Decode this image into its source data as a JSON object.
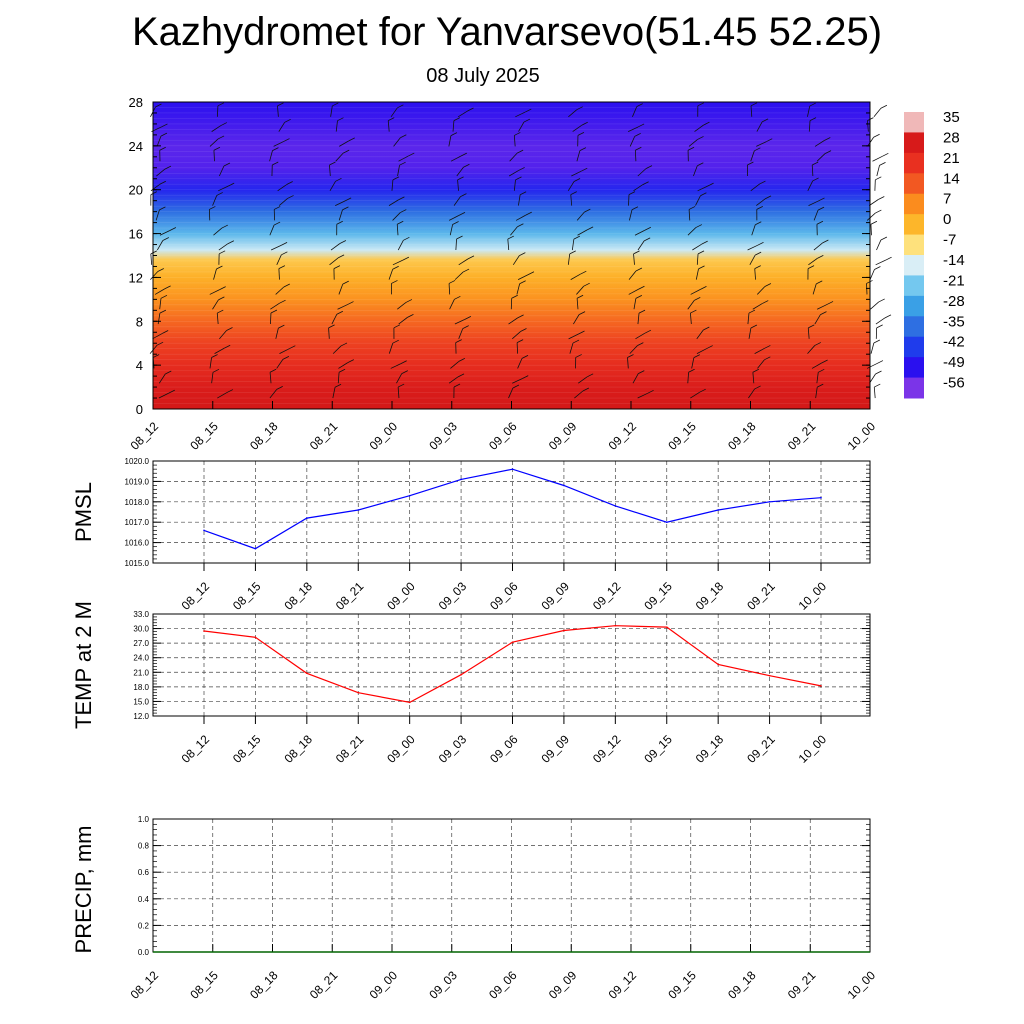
{
  "title": "Kazhydromet for Yanvarsevo(51.45 52.25)",
  "subtitle": "08 July 2025",
  "chart_data": [
    {
      "type": "heatmap",
      "name": "temperature cross-section with wind barbs",
      "x_ticks": [
        "08_12",
        "08_15",
        "08_18",
        "08_21",
        "09_00",
        "09_03",
        "09_06",
        "09_09",
        "09_12",
        "09_15",
        "09_18",
        "09_21",
        "10_00"
      ],
      "y_ticks": [
        0,
        4,
        8,
        12,
        16,
        20,
        24,
        28
      ],
      "ylim": [
        0,
        28
      ],
      "colorbar_labels": [
        "35",
        "28",
        "21",
        "14",
        "7",
        "0",
        "-7",
        "-14",
        "-21",
        "-28",
        "-35",
        "-42",
        "-49",
        "-56"
      ],
      "colorbar_colors": [
        "#f0b8b8",
        "#d71a1a",
        "#e93020",
        "#f25822",
        "#fb8c1e",
        "#fdb62a",
        "#fee17c",
        "#d9eef6",
        "#74c8ef",
        "#3aa0e6",
        "#2e6fe2",
        "#1f3cec",
        "#2a10ef",
        "#7b34e8"
      ],
      "profile": [
        {
          "level": 0,
          "value": 30
        },
        {
          "level": 2,
          "value": 27
        },
        {
          "level": 4,
          "value": 22
        },
        {
          "level": 6,
          "value": 18
        },
        {
          "level": 8,
          "value": 12
        },
        {
          "level": 10,
          "value": 6
        },
        {
          "level": 12,
          "value": 1
        },
        {
          "level": 13.6,
          "value": -3
        },
        {
          "level": 14.5,
          "value": -15
        },
        {
          "level": 16,
          "value": -24
        },
        {
          "level": 18,
          "value": -35
        },
        {
          "level": 20,
          "value": -46
        },
        {
          "level": 22,
          "value": -55
        },
        {
          "level": 24,
          "value": -56
        },
        {
          "level": 26,
          "value": -53
        },
        {
          "level": 28,
          "value": -50
        }
      ]
    },
    {
      "type": "line",
      "ylabel": "PMSL",
      "categories": [
        "08_12",
        "08_15",
        "08_18",
        "08_21",
        "09_00",
        "09_03",
        "09_06",
        "09_09",
        "09_12",
        "09_15",
        "09_18",
        "09_21",
        "10_00"
      ],
      "y_ticks": [
        "1015.0",
        "1016.0",
        "1017.0",
        "1018.0",
        "1019.0",
        "1020.0"
      ],
      "ylim": [
        1015,
        1020
      ],
      "series": [
        {
          "values": [
            1016.6,
            1015.7,
            1017.2,
            1017.6,
            1018.3,
            1019.1,
            1019.6,
            1018.8,
            1017.8,
            1017.0,
            1017.6,
            1018.0,
            1018.2
          ],
          "color": "#0000ff"
        }
      ],
      "grid": true
    },
    {
      "type": "line",
      "ylabel": "TEMP at 2 M",
      "categories": [
        "08_12",
        "08_15",
        "08_18",
        "08_21",
        "09_00",
        "09_03",
        "09_06",
        "09_09",
        "09_12",
        "09_15",
        "09_18",
        "09_21",
        "10_00"
      ],
      "y_ticks": [
        "12.0",
        "15.0",
        "18.0",
        "21.0",
        "24.0",
        "27.0",
        "30.0",
        "33.0"
      ],
      "ylim": [
        12,
        33
      ],
      "series": [
        {
          "values": [
            29.5,
            28.2,
            20.8,
            16.8,
            14.8,
            20.5,
            27.2,
            29.6,
            30.6,
            30.3,
            22.6,
            20.3,
            18.2
          ],
          "color": "#ff0000"
        }
      ],
      "grid": true
    },
    {
      "type": "line",
      "ylabel": "PRECIP, mm",
      "categories": [
        "08_12",
        "08_15",
        "08_18",
        "08_21",
        "09_00",
        "09_03",
        "09_06",
        "09_09",
        "09_12",
        "09_15",
        "09_18",
        "09_21",
        "10_00"
      ],
      "y_ticks": [
        "0.0",
        "0.2",
        "0.4",
        "0.6",
        "0.8",
        "1.0"
      ],
      "ylim": [
        0,
        1
      ],
      "series": [
        {
          "values": [
            0,
            0,
            0,
            0,
            0,
            0,
            0,
            0,
            0,
            0,
            0,
            0,
            0
          ],
          "color": "#006400"
        }
      ],
      "grid": true
    }
  ]
}
